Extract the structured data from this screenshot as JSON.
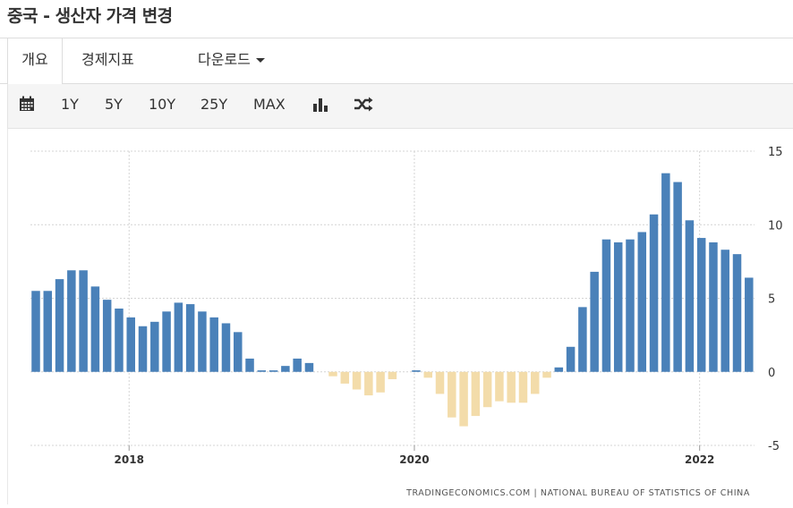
{
  "title": "중국 - 생산자 가격 변경",
  "tabs": [
    {
      "label": "개요"
    },
    {
      "label": "경제지표"
    },
    {
      "label": "다운로드"
    }
  ],
  "toolbar": {
    "calendar_icon": "calendar-icon",
    "ranges": [
      "1Y",
      "5Y",
      "10Y",
      "25Y",
      "MAX"
    ],
    "bar_chart_icon": "bar-chart-icon",
    "shuffle_icon": "shuffle-icon"
  },
  "colors": {
    "positive": "#4a81b9",
    "negative": "#f3dcaa"
  },
  "chart_data": {
    "type": "bar",
    "xlabel": "",
    "ylabel": "",
    "ylim": [
      -5,
      15
    ],
    "yticks": [
      15,
      10,
      5,
      0,
      -5
    ],
    "grid": true,
    "x_ticks": [
      {
        "label": "2018",
        "date": "2018-01"
      },
      {
        "label": "2020",
        "date": "2020-01"
      },
      {
        "label": "2022",
        "date": "2022-01"
      }
    ],
    "dates": [
      "2017-05",
      "2017-06",
      "2017-07",
      "2017-08",
      "2017-09",
      "2017-10",
      "2017-11",
      "2017-12",
      "2018-01",
      "2018-02",
      "2018-03",
      "2018-04",
      "2018-05",
      "2018-06",
      "2018-07",
      "2018-08",
      "2018-09",
      "2018-10",
      "2018-11",
      "2018-12",
      "2019-01",
      "2019-02",
      "2019-03",
      "2019-04",
      "2019-05",
      "2019-06",
      "2019-07",
      "2019-08",
      "2019-09",
      "2019-10",
      "2019-11",
      "2019-12",
      "2020-01",
      "2020-02",
      "2020-03",
      "2020-04",
      "2020-05",
      "2020-06",
      "2020-07",
      "2020-08",
      "2020-09",
      "2020-10",
      "2020-11",
      "2020-12",
      "2021-01",
      "2021-02",
      "2021-03",
      "2021-04",
      "2021-05",
      "2021-06",
      "2021-07",
      "2021-08",
      "2021-09",
      "2021-10",
      "2021-11",
      "2021-12",
      "2022-01",
      "2022-02",
      "2022-03",
      "2022-04",
      "2022-05"
    ],
    "values": [
      5.5,
      5.5,
      6.3,
      6.9,
      6.9,
      5.8,
      4.9,
      4.3,
      3.7,
      3.1,
      3.4,
      4.1,
      4.7,
      4.6,
      4.1,
      3.7,
      3.3,
      2.7,
      0.9,
      0.1,
      0.1,
      0.4,
      0.9,
      0.6,
      0.0,
      -0.3,
      -0.8,
      -1.2,
      -1.6,
      -1.4,
      -0.5,
      0.0,
      0.1,
      -0.4,
      -1.5,
      -3.1,
      -3.7,
      -3.0,
      -2.4,
      -2.0,
      -2.1,
      -2.1,
      -1.5,
      -0.4,
      0.3,
      1.7,
      4.4,
      6.8,
      9.0,
      8.8,
      9.0,
      9.5,
      10.7,
      13.5,
      12.9,
      10.3,
      9.1,
      8.8,
      8.3,
      8.0,
      6.4
    ]
  },
  "source": "TRADINGECONOMICS.COM  |  NATIONAL BUREAU OF STATISTICS OF CHINA"
}
